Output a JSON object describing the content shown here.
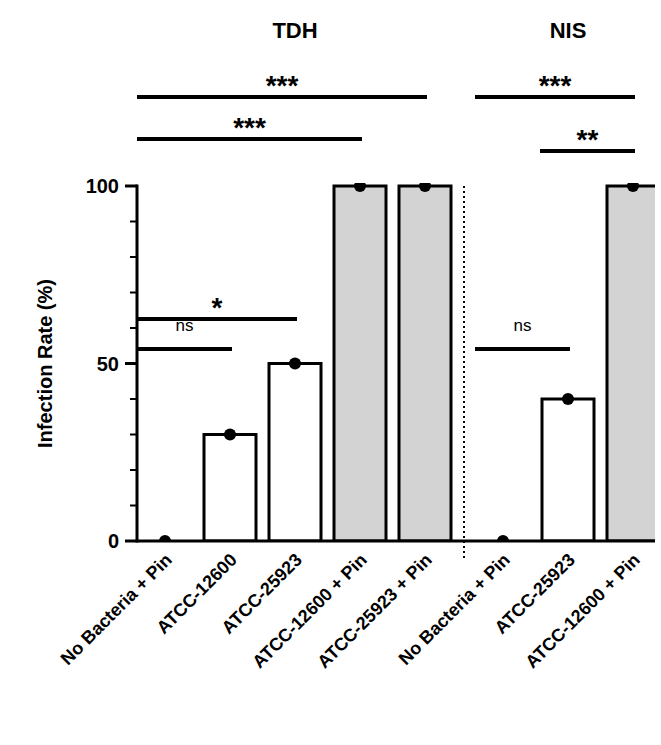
{
  "chart_data": {
    "type": "bar",
    "y_label": "Infection Rate (%)",
    "categories": [
      "No Bacteria + Pin",
      "ATCC-12600",
      "ATCC-25923",
      "ATCC-12600 + Pin",
      "ATCC-25923 + Pin",
      "No Bacteria + Pin",
      "ATCC-25923",
      "ATCC-12600 + Pin"
    ],
    "values": [
      0,
      30,
      50,
      100,
      100,
      0,
      40,
      100
    ],
    "colors": [
      "#ffffff",
      "#ffffff",
      "#ffffff",
      "#d3d3d3",
      "#d3d3d3",
      "#ffffff",
      "#ffffff",
      "#d3d3d3"
    ],
    "marker": "circle",
    "ylim": [
      0,
      100
    ],
    "yticks": [
      0,
      50,
      100
    ],
    "minor_yticks": [
      10,
      20,
      30,
      40,
      60,
      70,
      80,
      90
    ],
    "groups": [
      {
        "label": "TDH",
        "categories": [
          0,
          4
        ]
      },
      {
        "label": "NIS",
        "categories": [
          5,
          7
        ]
      }
    ],
    "annotations": [
      {
        "text": "***",
        "between": [
          0,
          4
        ]
      },
      {
        "text": "***",
        "between": [
          0,
          3
        ]
      },
      {
        "text": "*",
        "between": [
          0,
          2
        ]
      },
      {
        "text": "ns",
        "between": [
          0,
          1
        ]
      },
      {
        "text": "***",
        "between": [
          5,
          7
        ]
      },
      {
        "text": "**",
        "between": [
          6,
          7
        ]
      },
      {
        "text": "ns",
        "between": [
          5,
          6
        ]
      }
    ]
  }
}
